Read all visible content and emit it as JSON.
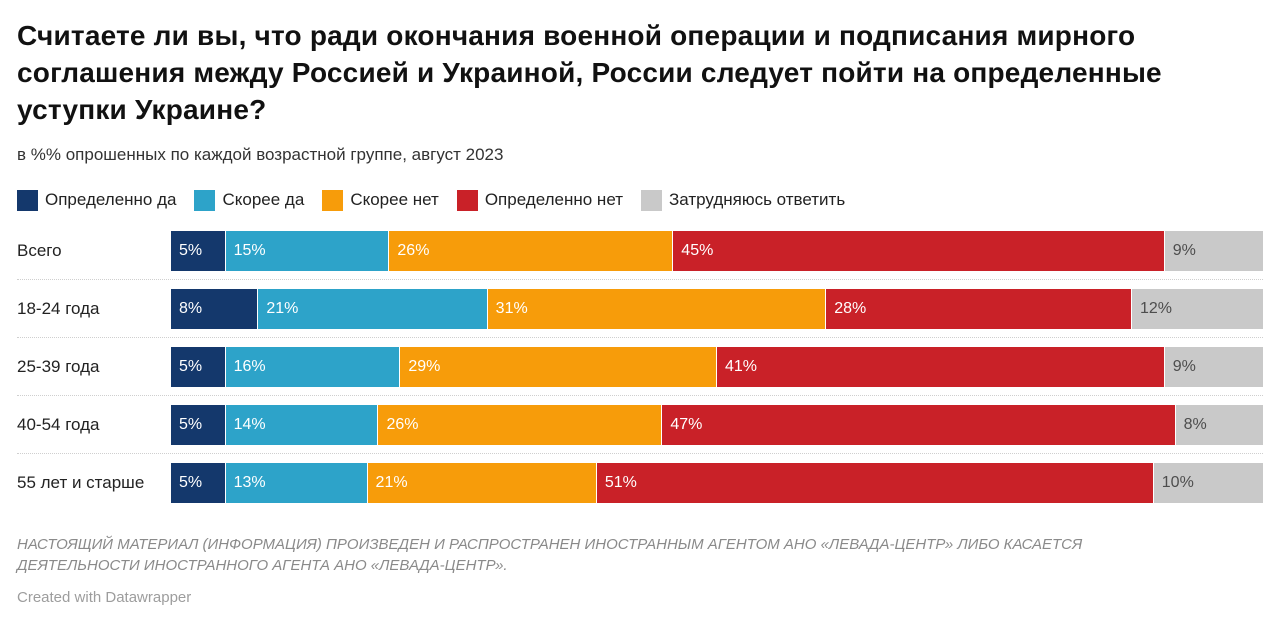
{
  "header": {
    "title": "Считаете ли вы, что ради окончания военной операции и подписания мирного соглашения между Россией и Украиной, России следует пойти на определенные уступки Украине?",
    "subtitle": "в %% опрошенных по каждой возрастной группе, август 2023"
  },
  "chart_data": {
    "type": "bar",
    "stacked": true,
    "orientation": "horizontal",
    "title": "Считаете ли вы, что ради окончания военной операции и подписания мирного соглашения между Россией и Украиной, России следует пойти на определенные уступки Украине?",
    "subtitle": "в %% опрошенных по каждой возрастной группе, август 2023",
    "categories": [
      "Всего",
      "18-24 года",
      "25-39 года",
      "40-54 года",
      "55 лет и старше"
    ],
    "series": [
      {
        "name": "Определенно да",
        "color": "#14386c",
        "values": [
          5,
          8,
          5,
          5,
          5
        ]
      },
      {
        "name": "Скорее да",
        "color": "#2da3c9",
        "values": [
          15,
          21,
          16,
          14,
          13
        ]
      },
      {
        "name": "Скорее нет",
        "color": "#f79c0a",
        "values": [
          26,
          31,
          29,
          26,
          21
        ]
      },
      {
        "name": "Определенно нет",
        "color": "#c92128",
        "values": [
          45,
          28,
          41,
          47,
          51
        ]
      },
      {
        "name": "Затрудняюсь ответить",
        "color": "#c9c9c9",
        "values": [
          9,
          12,
          9,
          8,
          10
        ]
      }
    ],
    "value_suffix": "%",
    "xlim": [
      0,
      100
    ],
    "legend_position": "top",
    "grid": false
  },
  "footer": {
    "note": "НАСТОЯЩИЙ МАТЕРИАЛ (ИНФОРМАЦИЯ) ПРОИЗВЕДЕН И РАСПРОСТРАНЕН ИНОСТРАННЫМ АГЕНТОМ АНО «ЛЕВАДА-ЦЕНТР» ЛИБО КАСАЕТСЯ ДЕЯТЕЛЬНОСТИ ИНОСТРАННОГО АГЕНТА АНО «ЛЕВАДА-ЦЕНТР».",
    "attribution": "Created with Datawrapper"
  }
}
